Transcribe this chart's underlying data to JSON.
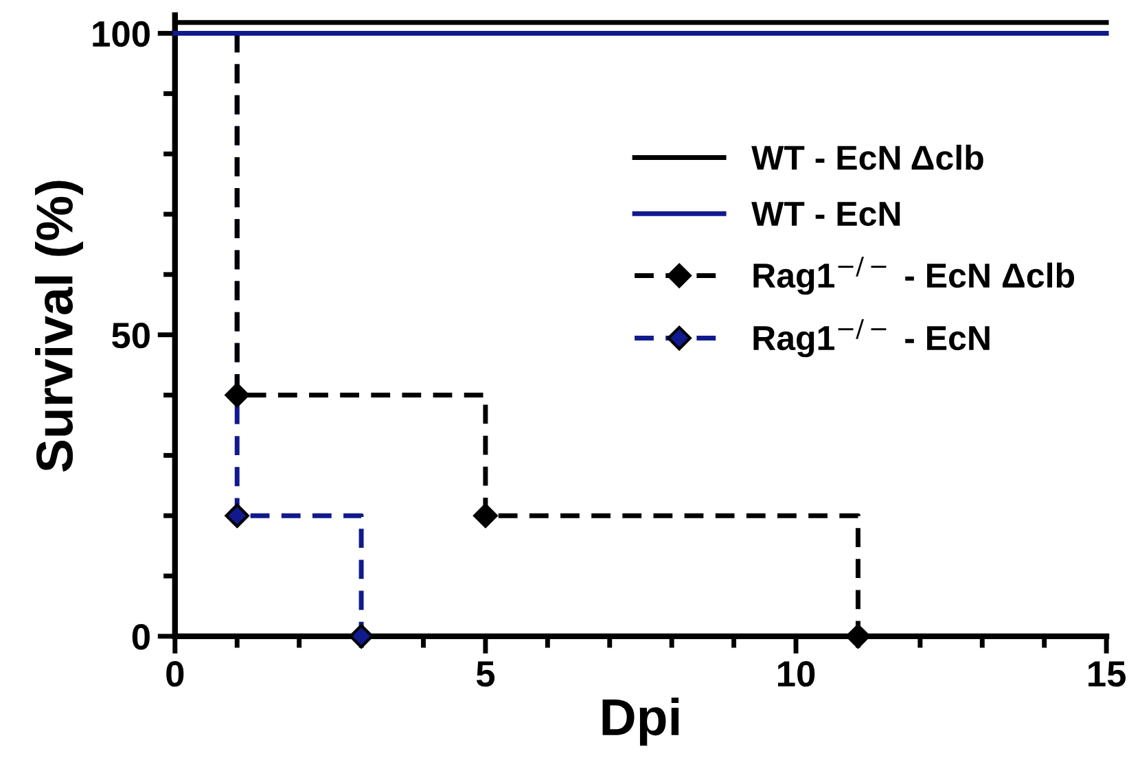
{
  "chart_data": {
    "type": "step",
    "xlabel": "Dpi",
    "ylabel": "Survival (%)",
    "xlim": [
      0,
      15
    ],
    "ylim": [
      0,
      103
    ],
    "xticks": [
      0,
      {
        "value": 1,
        "label": null
      },
      {
        "value": 2,
        "label": null
      },
      {
        "value": 3,
        "label": null
      },
      {
        "value": 4,
        "label": null
      },
      5,
      {
        "value": 6,
        "label": null
      },
      {
        "value": 7,
        "label": null
      },
      {
        "value": 8,
        "label": null
      },
      {
        "value": 9,
        "label": null
      },
      10,
      {
        "value": 11,
        "label": null
      },
      {
        "value": 12,
        "label": null
      },
      {
        "value": 13,
        "label": null
      },
      {
        "value": 14,
        "label": null
      },
      15
    ],
    "yticks": [
      0,
      {
        "value": 10,
        "label": null
      },
      {
        "value": 20,
        "label": null
      },
      {
        "value": 30,
        "label": null
      },
      {
        "value": 40,
        "label": null
      },
      50,
      {
        "value": 60,
        "label": null
      },
      {
        "value": 70,
        "label": null
      },
      {
        "value": 80,
        "label": null
      },
      {
        "value": 90,
        "label": null
      },
      100
    ],
    "grid": false,
    "legend": "right",
    "series": [
      {
        "name": "WT - EcN Δclb",
        "color": "#000000",
        "x": [
          0,
          15
        ],
        "values": [
          101.8,
          101.8
        ],
        "line_style": "solid",
        "marker": "none"
      },
      {
        "name": "WT - EcN",
        "color": "#101a8c",
        "x": [
          0,
          15
        ],
        "values": [
          100,
          100
        ],
        "line_style": "solid",
        "marker": "none"
      },
      {
        "name": "Rag1$^{−/−}$ - EcN Δclb",
        "color": "#000000",
        "x": [
          0,
          1,
          5,
          11
        ],
        "values": [
          100,
          40,
          20,
          0
        ],
        "line_style": "dashed",
        "marker": "diamond"
      },
      {
        "name": "Rag1$^{−/−}$ - EcN",
        "color": "#101a8c",
        "x": [
          0,
          1,
          3
        ],
        "values": [
          100,
          20,
          0
        ],
        "line_style": "dashed",
        "marker": "diamond"
      }
    ]
  }
}
